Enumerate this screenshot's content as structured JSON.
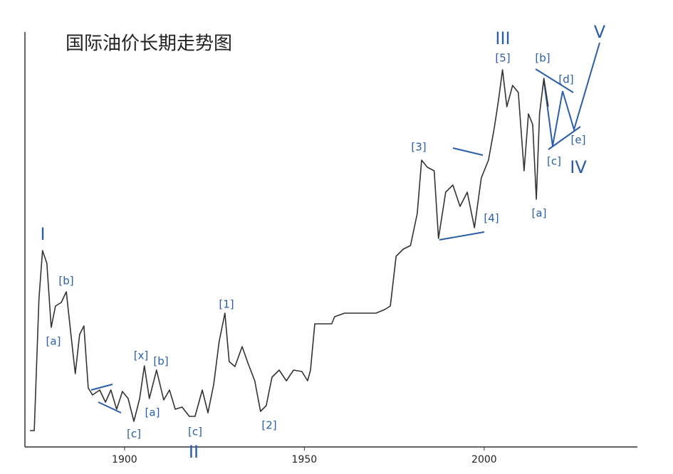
{
  "chart_data": {
    "type": "line",
    "title": "国际油价长期走势图",
    "series": [
      {
        "name": null,
        "color": "#333333",
        "x": [
          1873.7,
          1874.9,
          1876.2,
          1877.2,
          1878.4,
          1879.6,
          1880.8,
          1882.4,
          1883.8,
          1885.1,
          1886.3,
          1887.5,
          1888.7,
          1889.9,
          1891.1,
          1893.1,
          1894.7,
          1896.2,
          1897.8,
          1899.4,
          1901,
          1902.6,
          1904.2,
          1905.5,
          1906.9,
          1908.9,
          1910.9,
          1912.5,
          1914.1,
          1916,
          1918,
          1919.6,
          1921.6,
          1923.2,
          1924.8,
          1926.3,
          1927.9,
          1929.1,
          1930.7,
          1932.7,
          1934.3,
          1936.2,
          1937.8,
          1939.4,
          1941,
          1943,
          1945,
          1947,
          1949.3,
          1950.9,
          1951.7,
          1952.9,
          1957.6,
          1958.4,
          1961.2,
          1968.3,
          1969.9,
          1972.3,
          1973.9,
          1975.5,
          1977.5,
          1979.5,
          1981.4,
          1982.6,
          1984.2,
          1986.1,
          1987.3,
          1989.3,
          1991.3,
          1993.3,
          1995.3,
          1997.3,
          1999.2,
          2001.2,
          2002.8,
          2004,
          2005.1,
          2006.3,
          2007.9,
          2009.5,
          2011.1,
          2012.3,
          2013.5,
          2014.5,
          2015.4,
          2016.6,
          2017.8
        ],
        "values": [
          20,
          20,
          205,
          273,
          255,
          165,
          195,
          200,
          215,
          155,
          100,
          155,
          167,
          80,
          70,
          77,
          60,
          77,
          50,
          75,
          65,
          33,
          65,
          111,
          65,
          105,
          63,
          77,
          50,
          53,
          40,
          40,
          77,
          45,
          85,
          145,
          185,
          117,
          110,
          138,
          115,
          90,
          47,
          55,
          95,
          105,
          90,
          105,
          103,
          90,
          105,
          170,
          170,
          180,
          185,
          185,
          185,
          190,
          195,
          265,
          275,
          280,
          325,
          400,
          390,
          385,
          290,
          355,
          365,
          335,
          355,
          305,
          375,
          400,
          445,
          485,
          527,
          475,
          505,
          495,
          385,
          465,
          450,
          345,
          465,
          515,
          475
        ]
      }
    ],
    "xlim": [
      1872.3,
      2042.6
    ],
    "ylim": [
      0,
      580
    ],
    "xticks": [
      1900,
      1950,
      2000
    ],
    "annotations": [
      "I",
      "[a]",
      "[b]",
      "[c]",
      "[x]",
      "[b]",
      "[a]",
      "[c]",
      "II",
      "[1]",
      "[2]",
      "[3]",
      "[4]",
      "[5]",
      "III",
      "[a]",
      "[b]",
      "[c]",
      "[d]",
      "[e]",
      "IV",
      "V"
    ]
  }
}
